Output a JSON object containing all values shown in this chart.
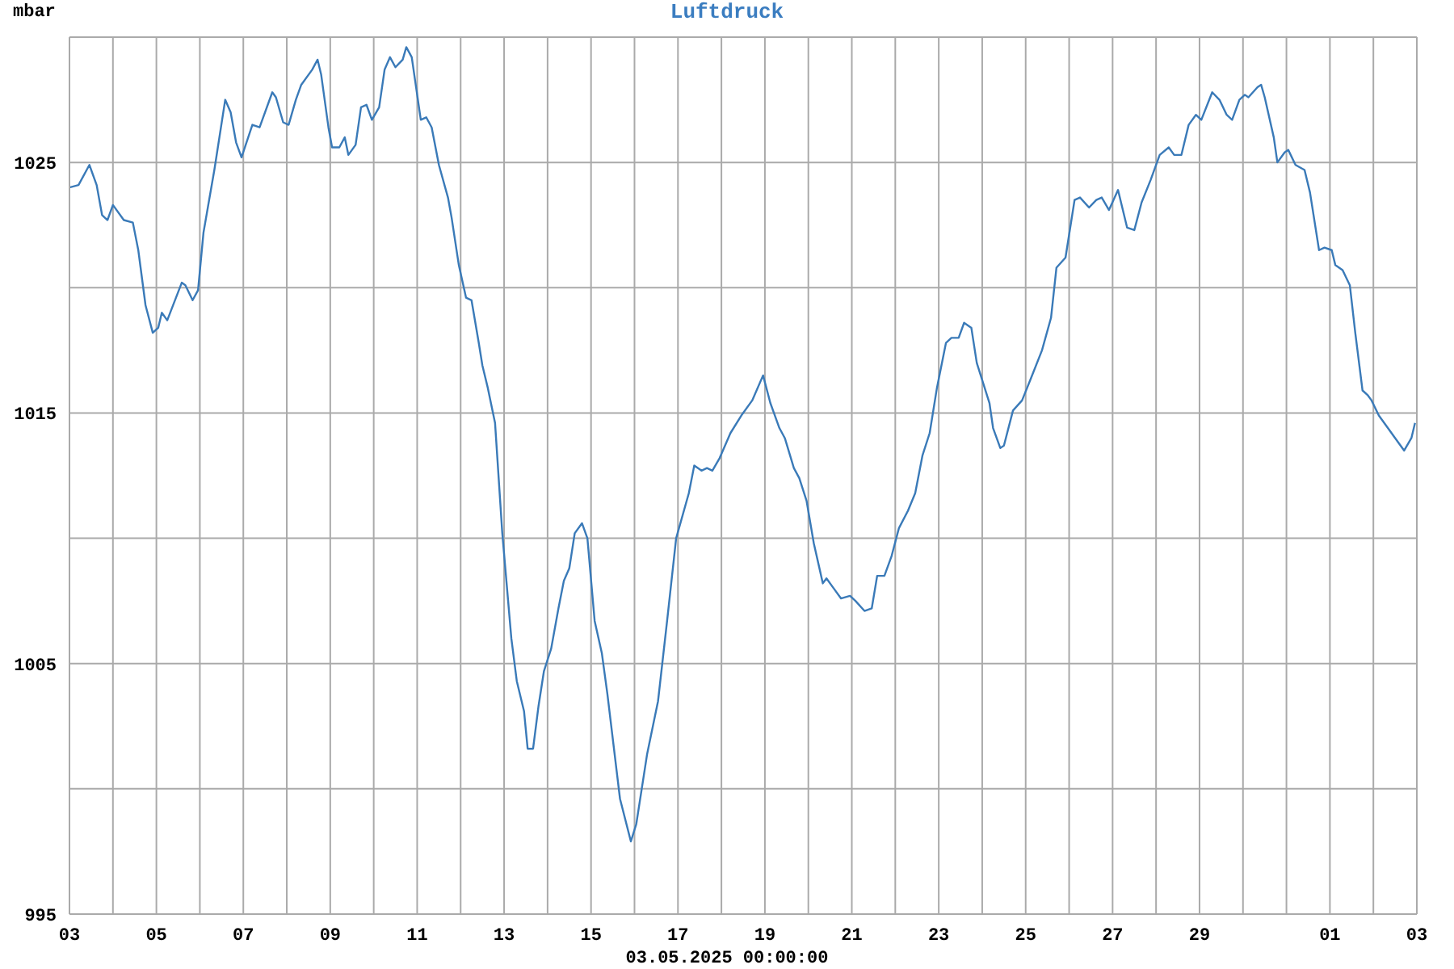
{
  "chart_data": {
    "type": "line",
    "title": "Luftdruck",
    "ylabel": "mbar",
    "xlabel": "03.05.2025 00:00:00",
    "grid": true,
    "line_style": "solid",
    "xlim": [
      "2025-05-03T00:00",
      "2025-06-03T00:00"
    ],
    "xticks": [
      {
        "value": "2025-05-03",
        "label": "03"
      },
      {
        "value": "2025-05-04",
        "label": null
      },
      {
        "value": "2025-05-05",
        "label": "05"
      },
      {
        "value": "2025-05-06",
        "label": null
      },
      {
        "value": "2025-05-07",
        "label": "07"
      },
      {
        "value": "2025-05-08",
        "label": null
      },
      {
        "value": "2025-05-09",
        "label": "09"
      },
      {
        "value": "2025-05-10",
        "label": null
      },
      {
        "value": "2025-05-11",
        "label": "11"
      },
      {
        "value": "2025-05-12",
        "label": null
      },
      {
        "value": "2025-05-13",
        "label": "13"
      },
      {
        "value": "2025-05-14",
        "label": null
      },
      {
        "value": "2025-05-15",
        "label": "15"
      },
      {
        "value": "2025-05-16",
        "label": null
      },
      {
        "value": "2025-05-17",
        "label": "17"
      },
      {
        "value": "2025-05-18",
        "label": null
      },
      {
        "value": "2025-05-19",
        "label": "19"
      },
      {
        "value": "2025-05-20",
        "label": null
      },
      {
        "value": "2025-05-21",
        "label": "21"
      },
      {
        "value": "2025-05-22",
        "label": null
      },
      {
        "value": "2025-05-23",
        "label": "23"
      },
      {
        "value": "2025-05-24",
        "label": null
      },
      {
        "value": "2025-05-25",
        "label": "25"
      },
      {
        "value": "2025-05-26",
        "label": null
      },
      {
        "value": "2025-05-27",
        "label": "27"
      },
      {
        "value": "2025-05-28",
        "label": null
      },
      {
        "value": "2025-05-29",
        "label": "29"
      },
      {
        "value": "2025-05-30",
        "label": null
      },
      {
        "value": "2025-05-31",
        "label": null
      },
      {
        "value": "2025-06-01",
        "label": "01"
      },
      {
        "value": "2025-06-02",
        "label": null
      },
      {
        "value": "2025-06-03",
        "label": "03"
      }
    ],
    "ylim": [
      995,
      1030
    ],
    "yticks": [
      995,
      {
        "value": 1000,
        "label": null
      },
      1005,
      {
        "value": 1010,
        "label": null
      },
      1015,
      {
        "value": 1020,
        "label": null
      },
      1025,
      {
        "value": 1030,
        "label": null
      }
    ],
    "x": [
      "2025-05-03T00:00",
      "2025-05-03T05:00",
      "2025-05-03T11:00",
      "2025-05-03T15:00",
      "2025-05-03T18:00",
      "2025-05-03T21:00",
      "2025-05-04T00:00",
      "2025-05-04T06:00",
      "2025-05-04T11:00",
      "2025-05-04T14:00",
      "2025-05-04T18:00",
      "2025-05-04T22:00",
      "2025-05-05T01:00",
      "2025-05-05T03:00",
      "2025-05-05T06:00",
      "2025-05-05T14:00",
      "2025-05-05T16:00",
      "2025-05-05T20:00",
      "2025-05-05T23:00",
      "2025-05-06T02:00",
      "2025-05-06T08:00",
      "2025-05-06T14:00",
      "2025-05-06T17:00",
      "2025-05-06T20:00",
      "2025-05-06T23:00",
      "2025-05-07T05:00",
      "2025-05-07T09:00",
      "2025-05-07T16:00",
      "2025-05-07T18:00",
      "2025-05-07T22:00",
      "2025-05-08T01:00",
      "2025-05-08T05:00",
      "2025-05-08T08:00",
      "2025-05-08T14:00",
      "2025-05-08T17:00",
      "2025-05-08T19:00",
      "2025-05-08T23:00",
      "2025-05-09T01:00",
      "2025-05-09T05:00",
      "2025-05-09T08:00",
      "2025-05-09T10:00",
      "2025-05-09T14:00",
      "2025-05-09T17:00",
      "2025-05-09T20:00",
      "2025-05-09T23:00",
      "2025-05-10T03:00",
      "2025-05-10T06:00",
      "2025-05-10T09:00",
      "2025-05-10T12:00",
      "2025-05-10T16:00",
      "2025-05-10T18:00",
      "2025-05-10T21:00",
      "2025-05-11T02:00",
      "2025-05-11T05:00",
      "2025-05-11T08:00",
      "2025-05-11T12:00",
      "2025-05-11T17:00",
      "2025-05-11T19:00",
      "2025-05-11T23:00",
      "2025-05-12T03:00",
      "2025-05-12T06:00",
      "2025-05-12T10:00",
      "2025-05-12T12:00",
      "2025-05-12T15:00",
      "2025-05-12T19:00",
      "2025-05-12T23:00",
      "2025-05-13T04:00",
      "2025-05-13T07:00",
      "2025-05-13T11:00",
      "2025-05-13T13:00",
      "2025-05-13T16:00",
      "2025-05-13T19:00",
      "2025-05-13T22:00",
      "2025-05-14T02:00",
      "2025-05-14T06:00",
      "2025-05-14T09:00",
      "2025-05-14T12:00",
      "2025-05-14T15:00",
      "2025-05-14T19:00",
      "2025-05-14T22:00",
      "2025-05-15T02:00",
      "2025-05-15T06:00",
      "2025-05-15T09:00",
      "2025-05-15T14:00",
      "2025-05-15T16:00",
      "2025-05-15T22:00",
      "2025-05-16T01:00",
      "2025-05-16T07:00",
      "2025-05-16T13:00",
      "2025-05-16T18:00",
      "2025-05-16T23:00",
      "2025-05-17T06:00",
      "2025-05-17T09:00",
      "2025-05-17T13:00",
      "2025-05-17T16:00",
      "2025-05-17T19:00",
      "2025-05-17T23:00",
      "2025-05-18T05:00",
      "2025-05-18T11:00",
      "2025-05-18T17:00",
      "2025-05-18T23:00",
      "2025-05-19T03:00",
      "2025-05-19T08:00",
      "2025-05-19T11:00",
      "2025-05-19T16:00",
      "2025-05-19T19:00",
      "2025-05-19T23:00",
      "2025-05-20T03:00",
      "2025-05-20T08:00",
      "2025-05-20T10:00",
      "2025-05-20T14:00",
      "2025-05-20T18:00",
      "2025-05-20T23:00",
      "2025-05-21T02:00",
      "2025-05-21T07:00",
      "2025-05-21T11:00",
      "2025-05-21T14:00",
      "2025-05-21T18:00",
      "2025-05-21T22:00",
      "2025-05-22T02:00",
      "2025-05-22T07:00",
      "2025-05-22T11:00",
      "2025-05-22T15:00",
      "2025-05-22T19:00",
      "2025-05-22T23:00",
      "2025-05-23T04:00",
      "2025-05-23T07:00",
      "2025-05-23T11:00",
      "2025-05-23T14:00",
      "2025-05-23T18:00",
      "2025-05-23T21:00",
      "2025-05-24T04:00",
      "2025-05-24T06:00",
      "2025-05-24T10:00",
      "2025-05-24T12:00",
      "2025-05-24T17:00",
      "2025-05-24T22:00",
      "2025-05-25T03:00",
      "2025-05-25T09:00",
      "2025-05-25T14:00",
      "2025-05-25T17:00",
      "2025-05-25T22:00",
      "2025-05-26T03:00",
      "2025-05-26T06:00",
      "2025-05-26T11:00",
      "2025-05-26T15:00",
      "2025-05-26T18:00",
      "2025-05-26T22:00",
      "2025-05-27T03:00",
      "2025-05-27T08:00",
      "2025-05-27T12:00",
      "2025-05-27T16:00",
      "2025-05-27T21:00",
      "2025-05-28T02:00",
      "2025-05-28T07:00",
      "2025-05-28T10:00",
      "2025-05-28T14:00",
      "2025-05-28T18:00",
      "2025-05-28T22:00",
      "2025-05-29T01:00",
      "2025-05-29T07:00",
      "2025-05-29T11:00",
      "2025-05-29T15:00",
      "2025-05-29T18:00",
      "2025-05-29T22:00",
      "2025-05-30T01:00",
      "2025-05-30T03:00",
      "2025-05-30T08:00",
      "2025-05-30T10:00",
      "2025-05-30T12:00",
      "2025-05-30T17:00",
      "2025-05-30T19:00",
      "2025-05-30T23:00",
      "2025-05-31T01:00",
      "2025-05-31T05:00",
      "2025-05-31T10:00",
      "2025-05-31T13:00",
      "2025-05-31T18:00",
      "2025-05-31T21:00",
      "2025-06-01T01:00",
      "2025-06-01T03:00",
      "2025-06-01T07:00",
      "2025-06-01T11:00",
      "2025-06-01T14:00",
      "2025-06-01T18:00",
      "2025-06-01T21:00",
      "2025-06-01T23:00",
      "2025-06-02T03:00",
      "2025-06-02T08:00",
      "2025-06-02T12:00",
      "2025-06-02T17:00",
      "2025-06-02T21:00",
      "2025-06-02T23:00"
    ],
    "series": [
      {
        "color": "#3a7ab8",
        "values": [
          1024.0,
          1024.1,
          1024.9,
          1024.1,
          1022.9,
          1022.7,
          1023.3,
          1022.7,
          1022.6,
          1021.5,
          1019.3,
          1018.2,
          1018.4,
          1019.0,
          1018.7,
          1020.2,
          1020.1,
          1019.5,
          1019.9,
          1022.2,
          1024.7,
          1027.5,
          1027.0,
          1025.8,
          1025.2,
          1026.5,
          1026.4,
          1027.8,
          1027.6,
          1026.6,
          1026.5,
          1027.5,
          1028.1,
          1028.7,
          1029.1,
          1028.5,
          1026.4,
          1025.6,
          1025.6,
          1026.0,
          1025.3,
          1025.7,
          1027.2,
          1027.3,
          1026.7,
          1027.2,
          1028.7,
          1029.2,
          1028.8,
          1029.1,
          1029.6,
          1029.2,
          1026.7,
          1026.8,
          1026.4,
          1024.9,
          1023.6,
          1022.8,
          1020.9,
          1019.6,
          1019.5,
          1017.8,
          1016.9,
          1016.0,
          1014.6,
          1010.2,
          1006.0,
          1004.3,
          1003.1,
          1001.6,
          1001.6,
          1003.3,
          1004.7,
          1005.6,
          1007.2,
          1008.3,
          1008.8,
          1010.2,
          1010.6,
          1010.0,
          1006.7,
          1005.4,
          1003.8,
          1000.8,
          999.6,
          997.9,
          998.6,
          1001.4,
          1003.5,
          1006.7,
          1010.0,
          1011.8,
          1012.9,
          1012.7,
          1012.8,
          1012.7,
          1013.2,
          1014.2,
          1014.9,
          1015.5,
          1016.5,
          1015.4,
          1014.4,
          1014.0,
          1012.8,
          1012.4,
          1011.5,
          1009.8,
          1008.2,
          1008.4,
          1008.0,
          1007.6,
          1007.7,
          1007.5,
          1007.1,
          1007.2,
          1008.5,
          1008.5,
          1009.3,
          1010.4,
          1011.1,
          1011.8,
          1013.3,
          1014.2,
          1016.0,
          1017.8,
          1018.0,
          1018.0,
          1018.6,
          1018.4,
          1017.0,
          1015.4,
          1014.4,
          1013.6,
          1013.7,
          1015.1,
          1015.5,
          1016.4,
          1017.5,
          1018.8,
          1020.8,
          1021.2,
          1023.5,
          1023.6,
          1023.2,
          1023.5,
          1023.6,
          1023.1,
          1023.9,
          1022.4,
          1022.3,
          1023.4,
          1024.3,
          1025.3,
          1025.6,
          1025.3,
          1025.3,
          1026.5,
          1026.9,
          1026.7,
          1027.8,
          1027.5,
          1026.9,
          1026.7,
          1027.5,
          1027.7,
          1027.6,
          1028.0,
          1028.1,
          1027.6,
          1026.0,
          1025.0,
          1025.4,
          1025.5,
          1024.9,
          1024.7,
          1023.8,
          1021.5,
          1021.6,
          1021.5,
          1020.9,
          1020.7,
          1020.1,
          1018.2,
          1015.9,
          1015.7,
          1015.5,
          1014.9,
          1014.4,
          1014.0,
          1013.5,
          1014.0,
          1014.6
        ]
      }
    ]
  }
}
